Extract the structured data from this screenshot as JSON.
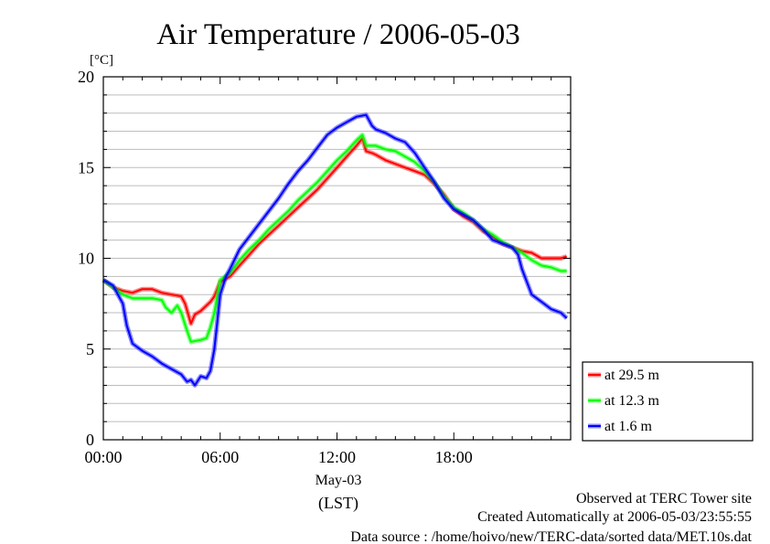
{
  "chart_data": {
    "type": "line",
    "title": "Air Temperature / 2006-05-03",
    "ylabel": "[°C]",
    "xlabel": "(LST)",
    "date_label": "May-03",
    "x_unit": "hour of day (LST)",
    "xlim": [
      0,
      24
    ],
    "ylim": [
      0,
      20
    ],
    "x_ticks": [
      0,
      6,
      12,
      18
    ],
    "x_tick_labels": [
      "00:00",
      "06:00",
      "12:00",
      "18:00"
    ],
    "y_ticks": [
      0,
      5,
      10,
      15,
      20
    ],
    "y_tick_labels": [
      "0",
      "5",
      "10",
      "15",
      "20"
    ],
    "grid": true,
    "legend_position": "right-bottom, outside plot",
    "series": [
      {
        "name": "at 29.5 m",
        "color": "#ff0000",
        "x": [
          0,
          0.5,
          1,
          1.5,
          2,
          2.5,
          3,
          3.5,
          4,
          4.2,
          4.5,
          4.7,
          5,
          5.5,
          5.7,
          6,
          6.5,
          7,
          7.5,
          8,
          8.5,
          9,
          9.5,
          10,
          10.5,
          11,
          11.5,
          12,
          12.5,
          13,
          13.3,
          13.5,
          13.8,
          14,
          14.5,
          15,
          15.5,
          16,
          16.5,
          17,
          17.5,
          18,
          18.5,
          19,
          19.5,
          20,
          20.5,
          21,
          21.5,
          22,
          22.5,
          23,
          23.5,
          23.8
        ],
        "values": [
          8.8,
          8.4,
          8.2,
          8.1,
          8.3,
          8.3,
          8.1,
          8.0,
          7.9,
          7.5,
          6.4,
          6.9,
          7.1,
          7.6,
          7.9,
          8.7,
          9.0,
          9.6,
          10.2,
          10.8,
          11.3,
          11.8,
          12.3,
          12.8,
          13.3,
          13.8,
          14.4,
          15.0,
          15.6,
          16.2,
          16.6,
          15.9,
          15.8,
          15.7,
          15.4,
          15.2,
          15.0,
          14.8,
          14.6,
          14.1,
          13.5,
          12.7,
          12.3,
          12.0,
          11.5,
          11.2,
          10.8,
          10.6,
          10.4,
          10.3,
          10.0,
          10.0,
          10.0,
          10.1
        ]
      },
      {
        "name": "at 12.3 m",
        "color": "#00ff00",
        "x": [
          0,
          0.5,
          1,
          1.5,
          2,
          2.5,
          3,
          3.2,
          3.5,
          3.8,
          4,
          4.3,
          4.5,
          5,
          5.3,
          5.5,
          5.7,
          6,
          6.5,
          7,
          7.5,
          8,
          8.5,
          9,
          9.5,
          10,
          10.5,
          11,
          11.5,
          12,
          12.5,
          13,
          13.3,
          13.5,
          14,
          14.5,
          15,
          15.5,
          16,
          16.5,
          17,
          17.5,
          18,
          18.5,
          19,
          19.5,
          20,
          20.5,
          21,
          21.5,
          22,
          22.5,
          23,
          23.5,
          23.8
        ],
        "values": [
          8.8,
          8.4,
          8.0,
          7.8,
          7.8,
          7.8,
          7.7,
          7.3,
          7.0,
          7.4,
          7.0,
          6.0,
          5.4,
          5.5,
          5.6,
          6.2,
          7.0,
          8.8,
          9.2,
          9.9,
          10.5,
          11.0,
          11.6,
          12.1,
          12.6,
          13.2,
          13.7,
          14.2,
          14.8,
          15.4,
          15.9,
          16.5,
          16.8,
          16.2,
          16.2,
          16.0,
          15.9,
          15.6,
          15.3,
          14.8,
          14.2,
          13.4,
          12.8,
          12.5,
          12.1,
          11.6,
          11.3,
          10.9,
          10.6,
          10.3,
          9.9,
          9.6,
          9.5,
          9.3,
          9.3
        ]
      },
      {
        "name": "at 1.6 m",
        "color": "#0000ff",
        "x": [
          0,
          0.5,
          1,
          1.2,
          1.5,
          2,
          2.5,
          3,
          3.5,
          4,
          4.3,
          4.5,
          4.7,
          5,
          5.3,
          5.5,
          5.7,
          6,
          6.3,
          6.5,
          7,
          7.5,
          8,
          8.5,
          9,
          9.5,
          10,
          10.5,
          11,
          11.5,
          12,
          12.5,
          13,
          13.5,
          13.8,
          14,
          14.5,
          15,
          15.5,
          16,
          16.5,
          17,
          17.5,
          18,
          18.5,
          19,
          19.5,
          20,
          20.5,
          21,
          21.3,
          21.5,
          22,
          22.5,
          23,
          23.5,
          23.8
        ],
        "values": [
          8.8,
          8.5,
          7.5,
          6.3,
          5.3,
          4.9,
          4.6,
          4.2,
          3.9,
          3.6,
          3.2,
          3.3,
          3.0,
          3.5,
          3.4,
          3.8,
          5.0,
          8.0,
          9.0,
          9.4,
          10.5,
          11.2,
          11.9,
          12.6,
          13.3,
          14.1,
          14.8,
          15.4,
          16.1,
          16.8,
          17.2,
          17.5,
          17.8,
          17.9,
          17.3,
          17.1,
          16.9,
          16.6,
          16.4,
          15.8,
          15.0,
          14.2,
          13.3,
          12.7,
          12.4,
          12.1,
          11.6,
          11.0,
          10.8,
          10.6,
          10.2,
          9.4,
          8.0,
          7.6,
          7.2,
          7.0,
          6.7
        ]
      }
    ]
  },
  "footer": {
    "line1": "Observed at TERC Tower site",
    "line2": "Created Automatically at 2006-05-03/23:55:55",
    "line3": "Data source : /home/hoivo/new/TERC-data/sorted  data/MET.10s.dat"
  }
}
